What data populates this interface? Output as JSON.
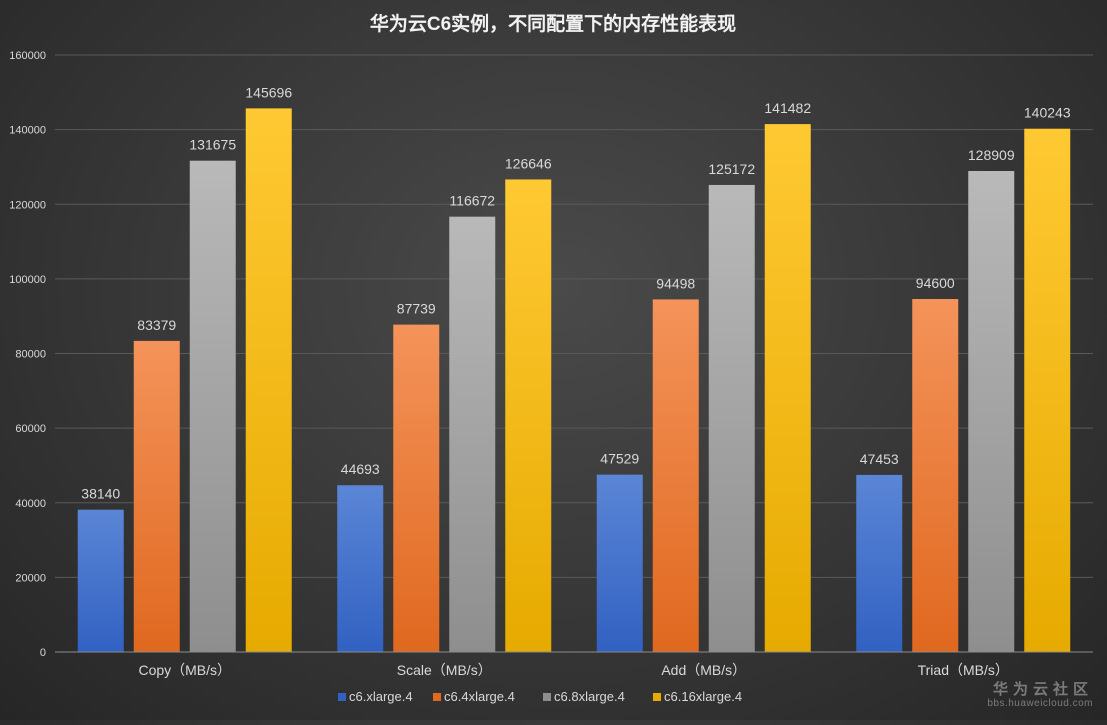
{
  "chart_data": {
    "type": "bar",
    "title": "华为云C6实例，不同配置下的内存性能表现",
    "xlabel": "",
    "ylabel": "",
    "ylim": [
      0,
      160000
    ],
    "yticks": [
      0,
      20000,
      40000,
      60000,
      80000,
      100000,
      120000,
      140000,
      160000
    ],
    "grid": true,
    "legend_position": "bottom-center",
    "categories": [
      "Copy（MB/s）",
      "Scale（MB/s）",
      "Add（MB/s）",
      "Triad（MB/s）"
    ],
    "series": [
      {
        "name": "c6.xlarge.4",
        "color_top": "#5b86d6",
        "color_bottom": "#3161c2",
        "values": [
          38140,
          44693,
          47529,
          47453
        ]
      },
      {
        "name": "c6.4xlarge.4",
        "color_top": "#f4935a",
        "color_bottom": "#e0681f",
        "values": [
          83379,
          87739,
          94498,
          94600
        ]
      },
      {
        "name": "c6.8xlarge.4",
        "color_top": "#b9b9b9",
        "color_bottom": "#8e8e8e",
        "values": [
          131675,
          116672,
          125172,
          128909
        ]
      },
      {
        "name": "c6.16xlarge.4",
        "color_top": "#ffc933",
        "color_bottom": "#e6aa00",
        "values": [
          145696,
          126646,
          141482,
          140243
        ]
      }
    ]
  },
  "watermark": {
    "title": "华为云社区",
    "url": "bbs.huaweicloud.com"
  },
  "colors": {
    "text": "#d9d9d9",
    "title": "#f2f2f2",
    "grid": "#5a5a5a",
    "axis": "#8c8c8c"
  }
}
